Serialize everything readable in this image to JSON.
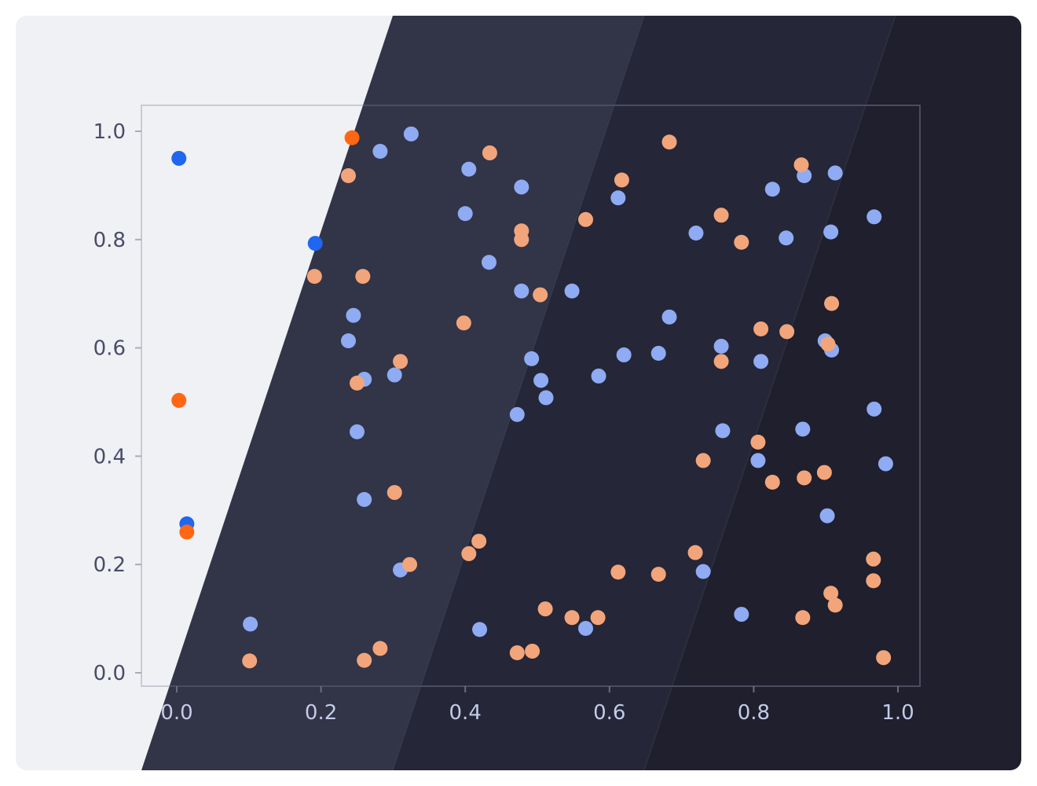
{
  "chart_data": {
    "type": "scatter",
    "title": "",
    "xlabel": "",
    "ylabel": "",
    "xlim": [
      -0.05,
      1.03
    ],
    "ylim": [
      -0.025,
      1.045
    ],
    "x_ticks": [
      "0.0",
      "0.2",
      "0.4",
      "0.6",
      "0.8",
      "1.0"
    ],
    "y_ticks": [
      "0.0",
      "0.2",
      "0.4",
      "0.6",
      "0.8",
      "1.0"
    ],
    "grid": false,
    "legend": "none",
    "colors": {
      "background_light": "#f0f1f4",
      "band_1": "#323447",
      "band_2": "#252637",
      "band_3": "#1f1f2d",
      "frame": "#4a4c60",
      "tick_dark": "#4a4c68",
      "tick_light": "#c3cbe8",
      "series_a": "#8eabf3",
      "series_b": "#f2a57a",
      "series_a_on_light": "#1f66f0",
      "series_b_on_light": "#ff6714"
    },
    "series": [
      {
        "color": "#8eabf3",
        "points": [
          [
            0.003,
            0.95
          ],
          [
            0.014,
            0.275
          ],
          [
            0.192,
            0.793
          ],
          [
            0.102,
            0.09
          ],
          [
            0.245,
            0.66
          ],
          [
            0.238,
            0.613
          ],
          [
            0.26,
            0.542
          ],
          [
            0.25,
            0.445
          ],
          [
            0.26,
            0.32
          ],
          [
            0.282,
            0.963
          ],
          [
            0.325,
            0.995
          ],
          [
            0.302,
            0.55
          ],
          [
            0.31,
            0.19
          ],
          [
            0.4,
            0.848
          ],
          [
            0.405,
            0.93
          ],
          [
            0.433,
            0.758
          ],
          [
            0.42,
            0.08
          ],
          [
            0.478,
            0.897
          ],
          [
            0.478,
            0.705
          ],
          [
            0.492,
            0.58
          ],
          [
            0.505,
            0.54
          ],
          [
            0.512,
            0.508
          ],
          [
            0.472,
            0.477
          ],
          [
            0.548,
            0.705
          ],
          [
            0.585,
            0.548
          ],
          [
            0.567,
            0.082
          ],
          [
            0.612,
            0.877
          ],
          [
            0.62,
            0.587
          ],
          [
            0.668,
            0.59
          ],
          [
            0.683,
            0.657
          ],
          [
            0.72,
            0.812
          ],
          [
            0.755,
            0.603
          ],
          [
            0.757,
            0.447
          ],
          [
            0.73,
            0.187
          ],
          [
            0.783,
            0.108
          ],
          [
            0.826,
            0.893
          ],
          [
            0.845,
            0.803
          ],
          [
            0.81,
            0.575
          ],
          [
            0.806,
            0.392
          ],
          [
            0.87,
            0.918
          ],
          [
            0.868,
            0.45
          ],
          [
            0.899,
            0.613
          ],
          [
            0.908,
            0.596
          ],
          [
            0.902,
            0.29
          ],
          [
            0.913,
            0.923
          ],
          [
            0.907,
            0.814
          ],
          [
            0.967,
            0.842
          ],
          [
            0.967,
            0.487
          ],
          [
            0.983,
            0.386
          ]
        ]
      },
      {
        "color": "#f2a57a",
        "points": [
          [
            0.243,
            0.988
          ],
          [
            0.238,
            0.918
          ],
          [
            0.003,
            0.503
          ],
          [
            0.014,
            0.26
          ],
          [
            0.191,
            0.732
          ],
          [
            0.258,
            0.732
          ],
          [
            0.31,
            0.575
          ],
          [
            0.25,
            0.535
          ],
          [
            0.302,
            0.333
          ],
          [
            0.323,
            0.2
          ],
          [
            0.101,
            0.022
          ],
          [
            0.26,
            0.023
          ],
          [
            0.282,
            0.045
          ],
          [
            0.434,
            0.96
          ],
          [
            0.398,
            0.646
          ],
          [
            0.419,
            0.243
          ],
          [
            0.405,
            0.22
          ],
          [
            0.478,
            0.816
          ],
          [
            0.478,
            0.8
          ],
          [
            0.504,
            0.698
          ],
          [
            0.472,
            0.037
          ],
          [
            0.493,
            0.04
          ],
          [
            0.567,
            0.837
          ],
          [
            0.511,
            0.118
          ],
          [
            0.548,
            0.102
          ],
          [
            0.584,
            0.102
          ],
          [
            0.617,
            0.91
          ],
          [
            0.612,
            0.186
          ],
          [
            0.668,
            0.182
          ],
          [
            0.683,
            0.98
          ],
          [
            0.755,
            0.845
          ],
          [
            0.755,
            0.575
          ],
          [
            0.783,
            0.795
          ],
          [
            0.73,
            0.392
          ],
          [
            0.719,
            0.222
          ],
          [
            0.81,
            0.635
          ],
          [
            0.846,
            0.63
          ],
          [
            0.806,
            0.426
          ],
          [
            0.826,
            0.352
          ],
          [
            0.866,
            0.938
          ],
          [
            0.87,
            0.36
          ],
          [
            0.868,
            0.102
          ],
          [
            0.908,
            0.682
          ],
          [
            0.903,
            0.607
          ],
          [
            0.898,
            0.37
          ],
          [
            0.907,
            0.147
          ],
          [
            0.913,
            0.125
          ],
          [
            0.966,
            0.21
          ],
          [
            0.966,
            0.17
          ],
          [
            0.98,
            0.028
          ]
        ]
      }
    ]
  }
}
